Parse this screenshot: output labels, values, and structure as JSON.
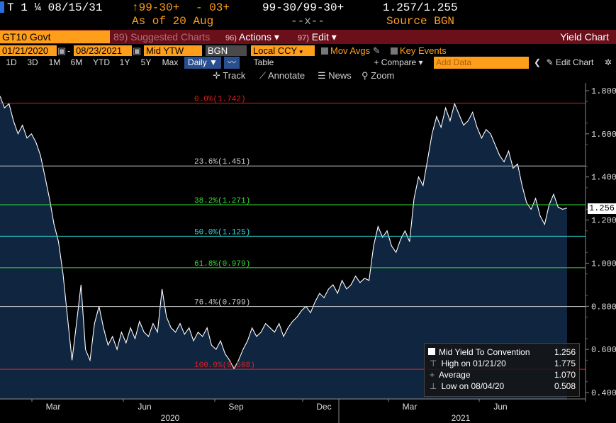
{
  "header": {
    "security": "T 1 ¼ 08/15/31",
    "price_change": "↑99-30+",
    "change": "- 03+",
    "bid_ask": "99-30/99-30+",
    "yield": "1.257/1.255",
    "asof": "As of 20 Aug",
    "dashes": "--x--",
    "source": "Source BGN"
  },
  "command_bar": {
    "ticker": "GT10 Govt",
    "suggested_num": "89)",
    "suggested": "Suggested Charts",
    "actions_num": "96)",
    "actions": "Actions ▾",
    "edit_num": "97)",
    "edit": "Edit ▾",
    "title": "Yield Chart"
  },
  "settings": {
    "start_date": "01/21/2020",
    "end_date": "08/23/2021",
    "field": "Mid YTW",
    "source": "BGN",
    "currency": "Local CCY",
    "mov_avgs": "Mov Avgs",
    "key_events": "Key Events"
  },
  "ranges": [
    "1D",
    "3D",
    "1M",
    "6M",
    "YTD",
    "1Y",
    "5Y",
    "Max"
  ],
  "period": "Daily ▼",
  "table_label": "Table",
  "compare_label": "+ Compare ▾",
  "add_data_placeholder": "Add Data",
  "edit_chart_label": "Edit Chart",
  "tools": {
    "track": "Track",
    "annotate": "Annotate",
    "news": "News",
    "zoom": "Zoom"
  },
  "legend": {
    "series": "Mid Yield To Convention",
    "series_value": "1.256",
    "high_label": "High on 01/21/20",
    "high_value": "1.775",
    "avg_label": "Average",
    "avg_value": "1.070",
    "low_label": "Low on 08/04/20",
    "low_value": "0.508"
  },
  "last_value": "1.256",
  "colors": {
    "orange": "#ff9e1b",
    "command_bar": "#6b0f1a",
    "area_fill": "#0f2540",
    "line": "#ffffff"
  },
  "chart_data": {
    "type": "area",
    "ylim": [
      0.4,
      1.85
    ],
    "yticks": [
      "1.800",
      "1.600",
      "1.400",
      "1.200",
      "1.000",
      "0.800",
      "0.600",
      "0.400"
    ],
    "ytick_values": [
      1.8,
      1.6,
      1.4,
      1.2,
      1.0,
      0.8,
      0.6,
      0.4
    ],
    "xlabels": [
      "Mar",
      "Jun",
      "Sep",
      "Dec",
      "Mar",
      "Jun"
    ],
    "years": [
      "2020",
      "2021"
    ],
    "fib_levels": [
      {
        "label": "0.0%(1.742)",
        "value": 1.742,
        "color": "#e02020"
      },
      {
        "label": "23.6%(1.451)",
        "value": 1.451,
        "color": "#cccccc"
      },
      {
        "label": "38.2%(1.271)",
        "value": 1.271,
        "color": "#33dd33"
      },
      {
        "label": "50.0%(1.125)",
        "value": 1.125,
        "color": "#33dddd"
      },
      {
        "label": "61.8%(0.979)",
        "value": 0.979,
        "color": "#33dd33"
      },
      {
        "label": "76.4%(0.799)",
        "value": 0.799,
        "color": "#cccccc"
      },
      {
        "label": "100.0%(0.508)",
        "value": 0.508,
        "color": "#e02020"
      }
    ],
    "series": [
      {
        "name": "Mid Yield To Convention",
        "values": [
          1.775,
          1.72,
          1.74,
          1.66,
          1.6,
          1.64,
          1.58,
          1.6,
          1.56,
          1.5,
          1.4,
          1.3,
          1.18,
          1.1,
          0.95,
          0.75,
          0.55,
          0.72,
          0.9,
          0.6,
          0.55,
          0.72,
          0.8,
          0.7,
          0.62,
          0.66,
          0.6,
          0.68,
          0.63,
          0.7,
          0.65,
          0.73,
          0.68,
          0.66,
          0.72,
          0.68,
          0.88,
          0.75,
          0.7,
          0.68,
          0.72,
          0.67,
          0.7,
          0.64,
          0.68,
          0.66,
          0.7,
          0.62,
          0.6,
          0.64,
          0.58,
          0.55,
          0.51,
          0.55,
          0.6,
          0.64,
          0.7,
          0.66,
          0.68,
          0.72,
          0.7,
          0.68,
          0.72,
          0.66,
          0.7,
          0.73,
          0.75,
          0.78,
          0.8,
          0.77,
          0.82,
          0.86,
          0.84,
          0.88,
          0.9,
          0.86,
          0.92,
          0.88,
          0.9,
          0.94,
          0.91,
          0.93,
          0.92,
          1.08,
          1.17,
          1.12,
          1.15,
          1.08,
          1.05,
          1.11,
          1.15,
          1.1,
          1.3,
          1.4,
          1.36,
          1.48,
          1.6,
          1.68,
          1.63,
          1.72,
          1.66,
          1.74,
          1.69,
          1.64,
          1.66,
          1.7,
          1.63,
          1.58,
          1.62,
          1.6,
          1.55,
          1.5,
          1.47,
          1.52,
          1.44,
          1.46,
          1.36,
          1.28,
          1.25,
          1.3,
          1.22,
          1.18,
          1.27,
          1.32,
          1.26,
          1.25,
          1.256
        ]
      }
    ]
  }
}
